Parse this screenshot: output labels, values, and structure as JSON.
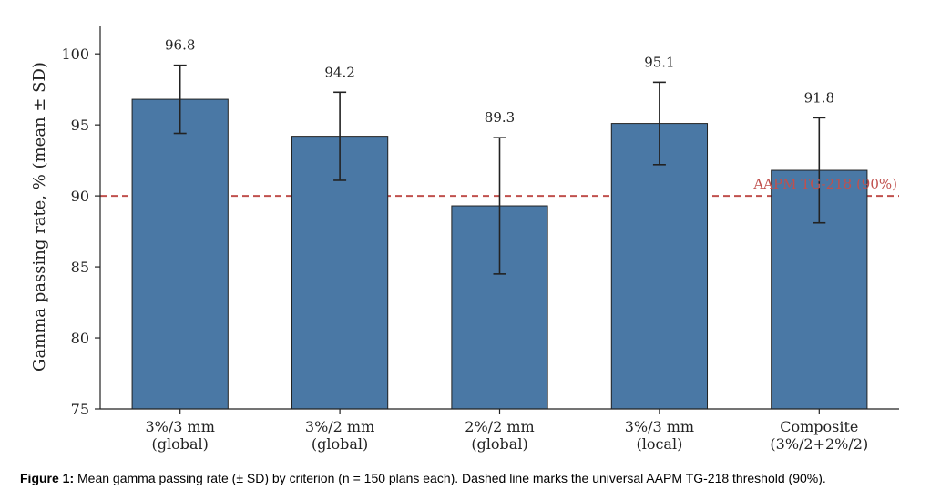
{
  "chart_data": {
    "type": "bar",
    "categories": [
      [
        "3%/3 mm",
        "(global)"
      ],
      [
        "3%/2 mm",
        "(global)"
      ],
      [
        "2%/2 mm",
        "(global)"
      ],
      [
        "3%/3 mm",
        "(local)"
      ],
      [
        "Composite",
        "(3%/2+2%/2)"
      ]
    ],
    "values": [
      96.8,
      94.2,
      89.3,
      95.1,
      91.8
    ],
    "value_labels": [
      "96.8",
      "94.2",
      "89.3",
      "95.1",
      "91.8"
    ],
    "error_sd": [
      2.4,
      3.1,
      4.8,
      2.9,
      3.7
    ],
    "ylabel": "Gamma passing rate, % (mean ± SD)",
    "ylim": [
      75,
      102
    ],
    "yticks": [
      75,
      80,
      85,
      90,
      95,
      100
    ],
    "reference_line": {
      "value": 90,
      "label": "AAPM TG-218 (90%)",
      "color": "#c0504d",
      "style": "dashed"
    },
    "bar_color": "#4a78a5",
    "grid": false,
    "legend": "none"
  },
  "caption": {
    "prefix": "Figure 1:",
    "text": " Mean gamma passing rate (± SD) by criterion (n = 150 plans each). Dashed line marks the universal AAPM TG-218 threshold (90%)."
  }
}
